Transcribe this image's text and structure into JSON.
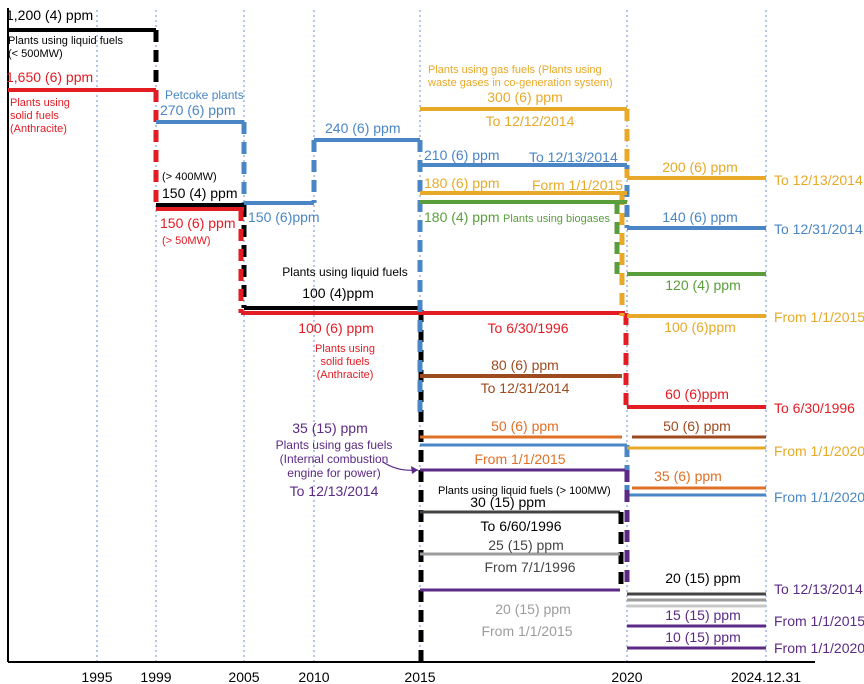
{
  "chart_data": {
    "type": "line",
    "x_ticks": [
      "1995",
      "1999",
      "2005",
      "2010",
      "2015",
      "2020",
      "2024.12.31"
    ],
    "colors": {
      "black": "#000000",
      "red": "#e31b23",
      "blue": "#4a86c5",
      "gold": "#e8a928",
      "green": "#5a9e3c",
      "brown": "#9e4a1f",
      "orange": "#e07026",
      "purple": "#5b2a86",
      "dark_gray": "#444444",
      "gray": "#9c9c9c",
      "light_gray": "#c8c8c8"
    },
    "series": [
      {
        "color": "black",
        "values": [
          {
            "from": "start",
            "to": "1999",
            "label": "1,200 (4) ppm"
          },
          {
            "from": "1999",
            "to": "2005",
            "label": "150 (4) ppm"
          },
          {
            "from": "2005",
            "to": "2015",
            "label": "100 (4)ppm"
          },
          {
            "from": "2015",
            "to": "2020",
            "label": "100 (4)ppm"
          }
        ]
      },
      {
        "color": "red",
        "values": [
          {
            "from": "start",
            "to": "1999",
            "label": "1,650 (6) ppm"
          },
          {
            "from": "1999",
            "to": "2005",
            "label": "150 (6) ppm"
          },
          {
            "from": "2005",
            "to": "2020",
            "label": "100 (6) ppm"
          },
          {
            "from": "2020",
            "to": "2024.12.31",
            "label": "60 (6)ppm"
          }
        ]
      },
      {
        "color": "blue",
        "values": [
          {
            "from": "1999",
            "to": "2005",
            "label": "270 (6) ppm"
          },
          {
            "from": "2005",
            "to": "2010",
            "label": "150 (6)ppm"
          },
          {
            "from": "2010",
            "to": "2015",
            "label": "240 (6) ppm"
          },
          {
            "from": "2015",
            "to": "2020",
            "label": "210 (6) ppm"
          },
          {
            "from": "2020",
            "to": "2024.12.31",
            "label": "140 (6) ppm"
          },
          {
            "from": "2015",
            "to": "2020",
            "label": "50 (6) ppm"
          },
          {
            "from": "2020",
            "to": "2024.12.31",
            "label": "35 (6) ppm"
          }
        ]
      },
      {
        "color": "gold",
        "values": [
          {
            "from": "2015",
            "to": "2020",
            "label": "300 (6) ppm"
          },
          {
            "from": "2015",
            "to": "2020",
            "label": "180 (6) ppm"
          },
          {
            "from": "2020",
            "to": "2024.12.31",
            "label": "200 (6) ppm"
          },
          {
            "from": "2020",
            "to": "2024.12.31",
            "label": "100 (6)ppm"
          }
        ]
      },
      {
        "color": "green",
        "values": [
          {
            "from": "2015",
            "to": "2020",
            "label": "180 (4) ppm"
          },
          {
            "from": "2020",
            "to": "2024.12.31",
            "label": "120 (4) ppm"
          }
        ]
      },
      {
        "color": "brown",
        "values": [
          {
            "from": "2015",
            "to": "2020",
            "label": "80 (6) ppm"
          },
          {
            "from": "2020",
            "to": "2024.12.31",
            "label": "50 (6) ppm"
          }
        ]
      },
      {
        "color": "orange",
        "values": [
          {
            "from": "2015",
            "to": "2020",
            "label": "50 (6) ppm"
          },
          {
            "from": "2020",
            "to": "2024.12.31",
            "label": "35 (6) ppm"
          }
        ]
      },
      {
        "color": "purple",
        "values": [
          {
            "from": "2015",
            "to": "2020",
            "label": "35 (15) ppm"
          },
          {
            "from": "2015",
            "to": "2020",
            "label": "20 (15) ppm"
          },
          {
            "from": "2020",
            "to": "2024.12.31",
            "label": "15 (15) ppm"
          },
          {
            "from": "2020",
            "to": "2024.12.31",
            "label": "10 (15) ppm"
          }
        ]
      },
      {
        "color": "dark_gray",
        "values": [
          {
            "from": "2015",
            "to": "2020",
            "label": "30 (15) ppm"
          },
          {
            "from": "2020",
            "to": "2024.12.31",
            "label": "20 (15) ppm"
          }
        ]
      },
      {
        "color": "gray",
        "values": [
          {
            "from": "2015",
            "to": "2020",
            "label": "25 (15) ppm"
          },
          {
            "from": "2020",
            "to": "2024.12.31",
            "label": "20 (15) ppm"
          }
        ]
      }
    ],
    "annotations": {
      "left": {
        "black_1200": "1,200 (4) ppm",
        "liquid_500mw": "Plants using liquid fuels\n(< 500MW)",
        "red_1650": "1,650 (6) ppm",
        "solid_anthracite_left": "Plants using\nsolid fuels\n(Anthracite)",
        "petcoke": "Petcoke plants",
        "blue_270": "270 (6) ppm",
        "over_400mw": "(> 400MW)",
        "black_150": "150 (4) ppm",
        "red_150": "150 (6) ppm",
        "over_50mw": "(> 50MW)",
        "blue_150": "150 (6)ppm",
        "blue_240": "240 (6) ppm",
        "liquid_fuels_mid": "Plants using liquid fuels",
        "black_100": "100 (4)ppm",
        "red_100": "100 (6) ppm",
        "solid_anthracite_mid": "Plants using\nsolid fuels\n(Anthracite)",
        "purple_35": "35 (15) ppm",
        "gas_internal": "Plants using gas fuels\n(Internal combustion\nengine for power)",
        "to_12_13_2014_purple": "To 12/13/2014"
      },
      "middle": {
        "gas_waste": "Plants using gas fuels (Plants using\nwaste gases in co-generation system)",
        "gold_300": "300 (6) ppm",
        "to_12_12_2014": "To 12/12/2014",
        "blue_210": "210 (6) ppm",
        "to_12_13_2014_blue": "To 12/13/2014",
        "gold_180": "180 (6) ppm",
        "form_1_1_2015": "Form 1/1/2015",
        "green_180": "180 (4) ppm",
        "biogases": "Plants using biogases",
        "to_6_30_1996_red": "To 6/30/1996",
        "brown_80": "80 (6) ppm",
        "to_12_31_2014": "To 12/31/2014",
        "orange_50": "50 (6) ppm",
        "from_1_1_2015_orange": "From 1/1/2015",
        "liquid_100mw": "Plants using liquid fuels  (> 100MW)",
        "dgray_30": "30 (15) ppm",
        "to_6_60_1996": "To 6/60/1996",
        "gray_25": "25 (15) ppm",
        "from_7_1_1996": "From 7/1/1996",
        "lgray_20": "20 (15) ppm",
        "from_1_1_2015_lgray": "From 1/1/2015"
      },
      "right": {
        "gold_200": "200 (6) ppm",
        "to_12_13_2014_gold": "To 12/13/2014",
        "blue_140": "140 (6) ppm",
        "to_12_31_2014_blue": "To 12/31/2014",
        "green_120": "120 (4) ppm",
        "gold_100": "100 (6)ppm",
        "from_1_1_2015_gold": "From 1/1/2015",
        "red_60": "60 (6)ppm",
        "to_6_30_1996_red": "To 6/30/1996",
        "brown_50": "50 (6) ppm",
        "from_1_1_2020_gold": "From 1/1/2020",
        "orange_35": "35 (6) ppm",
        "from_1_1_2020_blue": "From 1/1/2020",
        "dgray_20": "20 (15) ppm",
        "to_12_13_2014_purple": "To 12/13/2014",
        "purple_15": "15 (15) ppm",
        "from_1_1_2015_purple": "From 1/1/2015",
        "purple_10": "10 (15) ppm",
        "from_1_1_2020_purple": "From 1/1/2020"
      }
    }
  }
}
